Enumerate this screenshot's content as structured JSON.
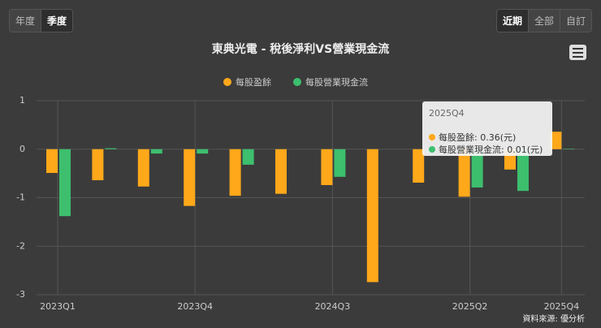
{
  "buttons_left": [
    "年度",
    "季度"
  ],
  "buttons_right": [
    "近期",
    "全部",
    "自訂"
  ],
  "chart_data": {
    "type": "bar",
    "title": "東典光電 - 稅後淨利VS營業現金流",
    "categories": [
      "2023Q1",
      null,
      null,
      "2023Q4",
      null,
      null,
      "2024Q3",
      null,
      null,
      "2025Q2",
      null,
      "2025Q4"
    ],
    "series": [
      {
        "name": "每股盈餘",
        "color": "#ffa81a",
        "values": [
          -0.49,
          -0.64,
          -0.77,
          -1.17,
          -0.96,
          -0.92,
          -0.74,
          -2.74,
          -0.69,
          -0.98,
          -0.42,
          0.36
        ]
      },
      {
        "name": "每股營業現金流",
        "color": "#3dbf6e",
        "values": [
          -1.38,
          0.02,
          -0.09,
          -0.09,
          -0.32,
          null,
          -0.57,
          null,
          null,
          -0.79,
          -0.86,
          0.01
        ]
      }
    ],
    "ylim": [
      -3,
      1
    ],
    "yticks": [
      -3,
      -2,
      -1,
      0,
      1
    ],
    "grid": true,
    "legend": "top"
  },
  "tooltip": {
    "title": "2025Q4",
    "lines": [
      "每股盈餘: 0.36(元)",
      "每股營業現金流: 0.01(元)"
    ]
  },
  "source": "資料來源: 優分析"
}
